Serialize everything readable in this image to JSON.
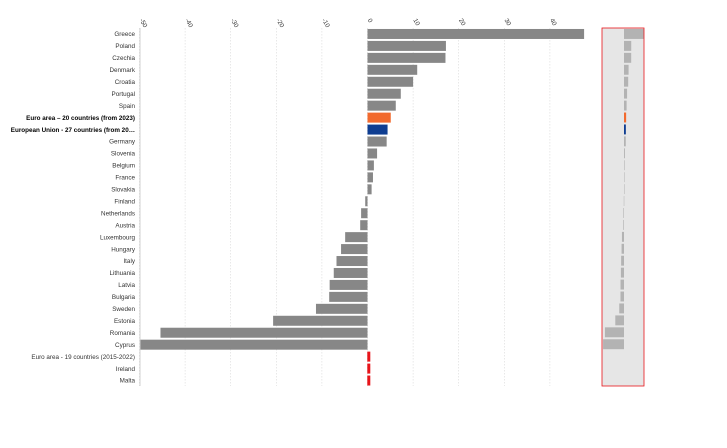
{
  "chart_data": {
    "type": "bar",
    "orientation": "horizontal",
    "title": "",
    "xlabel": "",
    "ylabel": "",
    "xlim": [
      -50,
      50
    ],
    "xticks": [
      -50,
      -40,
      -30,
      -20,
      -10,
      0,
      10,
      20,
      30,
      40
    ],
    "grid": true,
    "legend": "none",
    "colors": {
      "default": "#878787",
      "euro_area": "#f26a2e",
      "eu": "#0e3d91",
      "missing": "#e8141a",
      "navigator_bg": "#e6e6e6",
      "navigator_bar": "#b3b3b3",
      "navigator_border": "#e8141a"
    },
    "categories": [
      "Greece",
      "Poland",
      "Czechia",
      "Denmark",
      "Croatia",
      "Portugal",
      "Spain",
      "Euro area – 20 countries (from 2023)",
      "European Union - 27 countries (from 20…",
      "Germany",
      "Slovenia",
      "Belgium",
      "France",
      "Slovakia",
      "Finland",
      "Netherlands",
      "Austria",
      "Luxembourg",
      "Hungary",
      "Italy",
      "Lithuania",
      "Latvia",
      "Bulgaria",
      "Sweden",
      "Estonia",
      "Romania",
      "Cyprus",
      "Euro area - 19 countries  (2015-2022)",
      "Ireland",
      "Malta"
    ],
    "values": [
      47.5,
      17.2,
      17.1,
      10.9,
      10.0,
      7.3,
      6.2,
      5.1,
      4.4,
      4.2,
      2.1,
      1.4,
      1.2,
      0.9,
      -0.5,
      -1.4,
      -1.6,
      -4.9,
      -5.8,
      -6.8,
      -7.4,
      -8.3,
      -8.4,
      -11.3,
      -20.7,
      -45.4,
      -49.8,
      null,
      null,
      null
    ],
    "highlight": {
      "Euro area – 20 countries (from 2023)": "euro_area",
      "European Union - 27 countries (from 20…": "eu"
    },
    "bold_categories": [
      "Euro area – 20 countries (from 2023)",
      "European Union - 27 countries (from 20…"
    ]
  }
}
